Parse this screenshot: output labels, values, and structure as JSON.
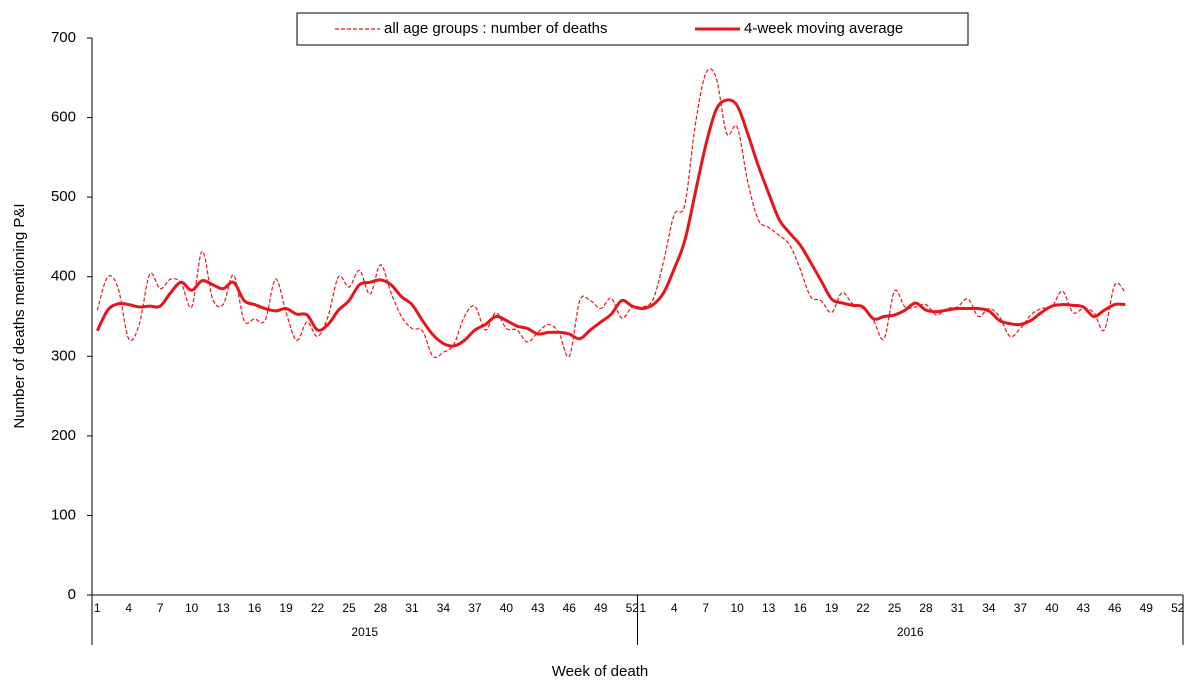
{
  "chart_data": {
    "type": "line",
    "x_label": "Week of death",
    "y_label": "Number of deaths mentioning P&I",
    "categories": [
      "1",
      null,
      null,
      "4",
      null,
      null,
      "7",
      null,
      null,
      "10",
      null,
      null,
      "13",
      null,
      null,
      "16",
      null,
      null,
      "19",
      null,
      null,
      "22",
      null,
      null,
      "25",
      null,
      null,
      "28",
      null,
      null,
      "31",
      null,
      null,
      "34",
      null,
      null,
      "37",
      null,
      null,
      "40",
      null,
      null,
      "43",
      null,
      null,
      "46",
      null,
      null,
      "49",
      null,
      null,
      "52",
      "1",
      null,
      null,
      "4",
      null,
      null,
      "7",
      null,
      null,
      "10",
      null,
      null,
      "13",
      null,
      null,
      "16",
      null,
      null,
      "19",
      null,
      null,
      "22",
      null,
      null,
      "25",
      null,
      null,
      "28",
      null,
      null,
      "31",
      null,
      null,
      "34",
      null,
      null,
      "37",
      null,
      null,
      "40",
      null,
      null,
      "43",
      null,
      null,
      "46",
      null,
      null,
      "49",
      null,
      null,
      "52"
    ],
    "groups": [
      "2015",
      "2016"
    ],
    "series": [
      {
        "name": "all age groups : number of deaths",
        "color": "#e8141b",
        "dashed": true,
        "values": [
          358,
          400,
          385,
          322,
          340,
          403,
          385,
          397,
          392,
          362,
          432,
          372,
          365,
          402,
          345,
          347,
          345,
          397,
          355,
          320,
          343,
          325,
          350,
          400,
          387,
          408,
          378,
          415,
          380,
          350,
          335,
          332,
          300,
          305,
          315,
          350,
          363,
          333,
          355,
          335,
          333,
          318,
          330,
          340,
          330,
          300,
          370,
          370,
          360,
          373,
          348,
          362,
          362,
          372,
          420,
          478,
          490,
          590,
          655,
          650,
          580,
          588,
          520,
          472,
          462,
          452,
          440,
          410,
          375,
          370,
          355,
          380,
          366,
          360,
          345,
          322,
          382,
          362,
          362,
          365,
          352,
          360,
          362,
          372,
          350,
          360,
          350,
          325,
          335,
          352,
          360,
          362,
          382,
          355,
          360,
          355,
          333,
          390,
          380,
          null,
          null,
          null,
          null,
          null
        ]
      },
      {
        "name": "4-week moving average",
        "color": "#e8141b",
        "dashed": false,
        "values": [
          332,
          358,
          366,
          365,
          362,
          363,
          363,
          380,
          393,
          383,
          395,
          390,
          385,
          393,
          370,
          365,
          360,
          357,
          360,
          353,
          352,
          333,
          340,
          358,
          370,
          390,
          393,
          396,
          390,
          375,
          365,
          345,
          327,
          316,
          313,
          320,
          333,
          340,
          350,
          345,
          338,
          335,
          328,
          330,
          330,
          328,
          322,
          333,
          343,
          353,
          370,
          363,
          360,
          365,
          380,
          410,
          445,
          505,
          565,
          610,
          622,
          615,
          580,
          540,
          505,
          472,
          455,
          440,
          418,
          395,
          372,
          367,
          364,
          362,
          347,
          350,
          352,
          358,
          367,
          358,
          356,
          358,
          360,
          360,
          360,
          357,
          345,
          341,
          340,
          345,
          355,
          363,
          365,
          364,
          362,
          350,
          358,
          365,
          365,
          null,
          null,
          null,
          null,
          null
        ]
      }
    ],
    "ylim": [
      0,
      700
    ],
    "yticks": [
      0,
      100,
      200,
      300,
      400,
      500,
      600,
      700
    ],
    "grid": false,
    "legend": "top"
  }
}
